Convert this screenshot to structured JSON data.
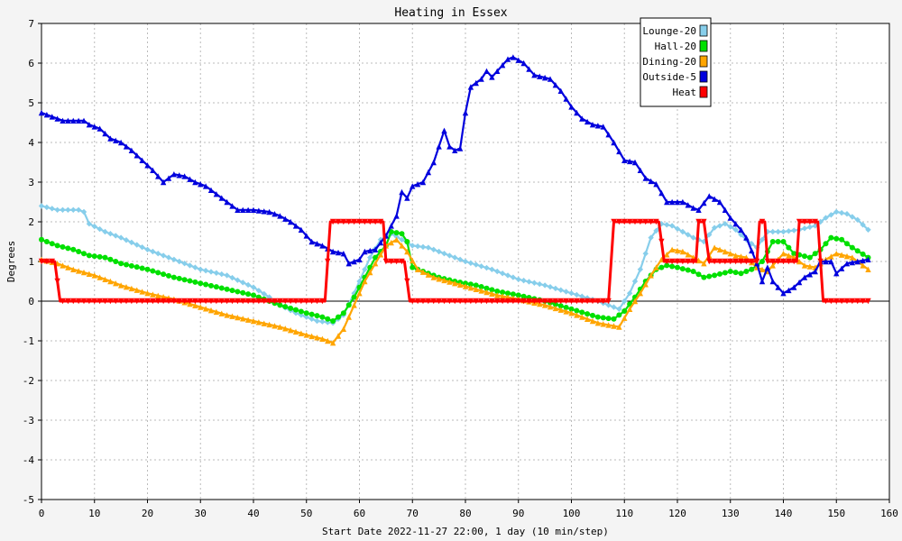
{
  "chart_data": {
    "type": "line",
    "title": "Heating in Essex",
    "xlabel": "Start Date 2022-11-27 22:00, 1 day (10 min/step)",
    "ylabel": "Degrees",
    "xlim": [
      0,
      160
    ],
    "ylim": [
      -5,
      7
    ],
    "xticks": [
      0,
      10,
      20,
      30,
      40,
      50,
      60,
      70,
      80,
      90,
      100,
      110,
      120,
      130,
      140,
      150,
      160
    ],
    "yticks": [
      -5,
      -4,
      -3,
      -2,
      -1,
      0,
      1,
      2,
      3,
      4,
      5,
      6,
      7
    ],
    "grid": true,
    "legend_position": "top-right",
    "series": [
      {
        "name": "Lounge-20",
        "color": "#87ceeb",
        "marker": "diamond",
        "points": [
          [
            0,
            2.4
          ],
          [
            3,
            2.3
          ],
          [
            7,
            2.3
          ],
          [
            8,
            2.25
          ],
          [
            9,
            1.95
          ],
          [
            12,
            1.75
          ],
          [
            15,
            1.6
          ],
          [
            20,
            1.3
          ],
          [
            25,
            1.05
          ],
          [
            30,
            0.8
          ],
          [
            35,
            0.65
          ],
          [
            40,
            0.35
          ],
          [
            43,
            0.1
          ],
          [
            45,
            -0.1
          ],
          [
            48,
            -0.3
          ],
          [
            52,
            -0.5
          ],
          [
            55,
            -0.55
          ],
          [
            57,
            -0.35
          ],
          [
            59,
            0.2
          ],
          [
            62,
            1.1
          ],
          [
            64,
            1.55
          ],
          [
            66,
            1.7
          ],
          [
            68,
            1.55
          ],
          [
            70,
            1.4
          ],
          [
            73,
            1.35
          ],
          [
            76,
            1.2
          ],
          [
            80,
            1.0
          ],
          [
            85,
            0.8
          ],
          [
            90,
            0.55
          ],
          [
            95,
            0.4
          ],
          [
            100,
            0.2
          ],
          [
            105,
            0.0
          ],
          [
            107,
            -0.1
          ],
          [
            109,
            -0.2
          ],
          [
            111,
            0.2
          ],
          [
            113,
            0.8
          ],
          [
            115,
            1.6
          ],
          [
            117,
            1.95
          ],
          [
            119,
            1.9
          ],
          [
            121,
            1.75
          ],
          [
            123,
            1.6
          ],
          [
            125,
            1.5
          ],
          [
            127,
            1.85
          ],
          [
            129,
            1.95
          ],
          [
            131,
            1.8
          ],
          [
            133,
            1.55
          ],
          [
            135,
            1.35
          ],
          [
            137,
            1.75
          ],
          [
            140,
            1.75
          ],
          [
            143,
            1.8
          ],
          [
            146,
            1.9
          ],
          [
            148,
            2.1
          ],
          [
            150,
            2.25
          ],
          [
            152,
            2.2
          ],
          [
            154,
            2.05
          ],
          [
            156,
            1.8
          ]
        ]
      },
      {
        "name": "Hall-20",
        "color": "#00e000",
        "marker": "circle",
        "points": [
          [
            0,
            1.55
          ],
          [
            3,
            1.4
          ],
          [
            6,
            1.3
          ],
          [
            9,
            1.15
          ],
          [
            12,
            1.1
          ],
          [
            15,
            0.95
          ],
          [
            20,
            0.8
          ],
          [
            25,
            0.6
          ],
          [
            30,
            0.45
          ],
          [
            35,
            0.3
          ],
          [
            40,
            0.15
          ],
          [
            45,
            -0.1
          ],
          [
            50,
            -0.3
          ],
          [
            53,
            -0.4
          ],
          [
            55,
            -0.5
          ],
          [
            57,
            -0.3
          ],
          [
            59,
            0.1
          ],
          [
            61,
            0.6
          ],
          [
            63,
            1.1
          ],
          [
            65,
            1.4
          ],
          [
            66,
            1.75
          ],
          [
            68,
            1.7
          ],
          [
            69,
            1.5
          ],
          [
            70,
            0.85
          ],
          [
            72,
            0.75
          ],
          [
            75,
            0.6
          ],
          [
            78,
            0.5
          ],
          [
            82,
            0.4
          ],
          [
            86,
            0.25
          ],
          [
            90,
            0.15
          ],
          [
            95,
            0.0
          ],
          [
            100,
            -0.2
          ],
          [
            105,
            -0.4
          ],
          [
            108,
            -0.45
          ],
          [
            110,
            -0.25
          ],
          [
            112,
            0.1
          ],
          [
            114,
            0.5
          ],
          [
            116,
            0.8
          ],
          [
            118,
            0.9
          ],
          [
            120,
            0.85
          ],
          [
            123,
            0.75
          ],
          [
            125,
            0.6
          ],
          [
            127,
            0.65
          ],
          [
            130,
            0.75
          ],
          [
            132,
            0.7
          ],
          [
            134,
            0.8
          ],
          [
            136,
            1.0
          ],
          [
            138,
            1.5
          ],
          [
            140,
            1.5
          ],
          [
            142,
            1.2
          ],
          [
            145,
            1.1
          ],
          [
            147,
            1.3
          ],
          [
            149,
            1.6
          ],
          [
            151,
            1.55
          ],
          [
            153,
            1.35
          ],
          [
            156,
            1.1
          ]
        ]
      },
      {
        "name": "Dining-20",
        "color": "#ffa500",
        "marker": "triangle",
        "points": [
          [
            0,
            1.05
          ],
          [
            3,
            0.95
          ],
          [
            6,
            0.8
          ],
          [
            10,
            0.65
          ],
          [
            15,
            0.4
          ],
          [
            20,
            0.2
          ],
          [
            25,
            0.05
          ],
          [
            30,
            -0.15
          ],
          [
            35,
            -0.35
          ],
          [
            40,
            -0.5
          ],
          [
            45,
            -0.65
          ],
          [
            50,
            -0.85
          ],
          [
            53,
            -0.95
          ],
          [
            55,
            -1.05
          ],
          [
            57,
            -0.7
          ],
          [
            59,
            -0.1
          ],
          [
            61,
            0.5
          ],
          [
            63,
            0.95
          ],
          [
            65,
            1.4
          ],
          [
            67,
            1.55
          ],
          [
            69,
            1.25
          ],
          [
            71,
            0.8
          ],
          [
            74,
            0.6
          ],
          [
            78,
            0.45
          ],
          [
            82,
            0.3
          ],
          [
            86,
            0.15
          ],
          [
            90,
            0.05
          ],
          [
            95,
            -0.1
          ],
          [
            100,
            -0.3
          ],
          [
            105,
            -0.55
          ],
          [
            109,
            -0.65
          ],
          [
            111,
            -0.2
          ],
          [
            113,
            0.2
          ],
          [
            115,
            0.65
          ],
          [
            117,
            1.05
          ],
          [
            119,
            1.3
          ],
          [
            121,
            1.25
          ],
          [
            123,
            1.1
          ],
          [
            125,
            0.95
          ],
          [
            127,
            1.35
          ],
          [
            129,
            1.25
          ],
          [
            131,
            1.15
          ],
          [
            133,
            1.1
          ],
          [
            135,
            0.85
          ],
          [
            137,
            0.75
          ],
          [
            140,
            1.2
          ],
          [
            142,
            1.1
          ],
          [
            144,
            0.9
          ],
          [
            146,
            0.85
          ],
          [
            148,
            1.05
          ],
          [
            150,
            1.2
          ],
          [
            153,
            1.1
          ],
          [
            156,
            0.8
          ]
        ]
      },
      {
        "name": "Outside-5",
        "color": "#0000dd",
        "marker": "triangle",
        "points": [
          [
            0,
            4.75
          ],
          [
            2,
            4.65
          ],
          [
            4,
            4.55
          ],
          [
            8,
            4.55
          ],
          [
            9,
            4.45
          ],
          [
            11,
            4.35
          ],
          [
            13,
            4.1
          ],
          [
            15,
            4.0
          ],
          [
            17,
            3.8
          ],
          [
            19,
            3.55
          ],
          [
            21,
            3.3
          ],
          [
            23,
            3.0
          ],
          [
            25,
            3.2
          ],
          [
            27,
            3.15
          ],
          [
            29,
            3.0
          ],
          [
            31,
            2.9
          ],
          [
            33,
            2.7
          ],
          [
            35,
            2.5
          ],
          [
            37,
            2.3
          ],
          [
            40,
            2.3
          ],
          [
            43,
            2.25
          ],
          [
            45,
            2.15
          ],
          [
            47,
            2.0
          ],
          [
            49,
            1.8
          ],
          [
            51,
            1.5
          ],
          [
            53,
            1.4
          ],
          [
            55,
            1.25
          ],
          [
            57,
            1.2
          ],
          [
            58,
            0.95
          ],
          [
            60,
            1.05
          ],
          [
            61,
            1.25
          ],
          [
            63,
            1.3
          ],
          [
            65,
            1.65
          ],
          [
            67,
            2.15
          ],
          [
            68,
            2.75
          ],
          [
            69,
            2.6
          ],
          [
            70,
            2.9
          ],
          [
            72,
            3.0
          ],
          [
            74,
            3.5
          ],
          [
            76,
            4.3
          ],
          [
            77,
            3.9
          ],
          [
            78,
            3.8
          ],
          [
            79,
            3.85
          ],
          [
            80,
            4.75
          ],
          [
            81,
            5.4
          ],
          [
            83,
            5.6
          ],
          [
            84,
            5.8
          ],
          [
            85,
            5.65
          ],
          [
            86,
            5.8
          ],
          [
            88,
            6.1
          ],
          [
            89,
            6.15
          ],
          [
            91,
            6.0
          ],
          [
            93,
            5.7
          ],
          [
            96,
            5.6
          ],
          [
            98,
            5.3
          ],
          [
            100,
            4.9
          ],
          [
            102,
            4.6
          ],
          [
            104,
            4.45
          ],
          [
            106,
            4.4
          ],
          [
            108,
            4.0
          ],
          [
            110,
            3.55
          ],
          [
            112,
            3.5
          ],
          [
            114,
            3.1
          ],
          [
            116,
            2.95
          ],
          [
            118,
            2.5
          ],
          [
            121,
            2.5
          ],
          [
            123,
            2.35
          ],
          [
            124,
            2.3
          ],
          [
            126,
            2.65
          ],
          [
            128,
            2.5
          ],
          [
            130,
            2.1
          ],
          [
            132,
            1.8
          ],
          [
            133,
            1.6
          ],
          [
            135,
            0.95
          ],
          [
            136,
            0.5
          ],
          [
            137,
            0.85
          ],
          [
            138,
            0.5
          ],
          [
            140,
            0.2
          ],
          [
            142,
            0.35
          ],
          [
            144,
            0.6
          ],
          [
            146,
            0.75
          ],
          [
            147,
            1.0
          ],
          [
            149,
            1.0
          ],
          [
            150,
            0.7
          ],
          [
            152,
            0.95
          ],
          [
            154,
            1.0
          ],
          [
            156,
            1.05
          ]
        ]
      },
      {
        "name": "Heat",
        "color": "#ff0000",
        "marker": "triangle-down",
        "points": [
          [
            0,
            1.0
          ],
          [
            2.5,
            1.0
          ],
          [
            3.5,
            0.0
          ],
          [
            53.5,
            0.0
          ],
          [
            54.5,
            2.0
          ],
          [
            64.5,
            2.0
          ],
          [
            65,
            1.0
          ],
          [
            68.5,
            1.0
          ],
          [
            69.5,
            0.0
          ],
          [
            107,
            0.0
          ],
          [
            108,
            2.0
          ],
          [
            116.5,
            2.0
          ],
          [
            117.5,
            1.0
          ],
          [
            123.5,
            1.0
          ],
          [
            124,
            2.0
          ],
          [
            125,
            2.0
          ],
          [
            126,
            1.0
          ],
          [
            135,
            1.0
          ],
          [
            135.5,
            2.0
          ],
          [
            136.5,
            2.0
          ],
          [
            137,
            1.0
          ],
          [
            142.5,
            1.0
          ],
          [
            143,
            2.0
          ],
          [
            146.5,
            2.0
          ],
          [
            147.5,
            0.0
          ],
          [
            156,
            0.0
          ]
        ]
      }
    ]
  }
}
